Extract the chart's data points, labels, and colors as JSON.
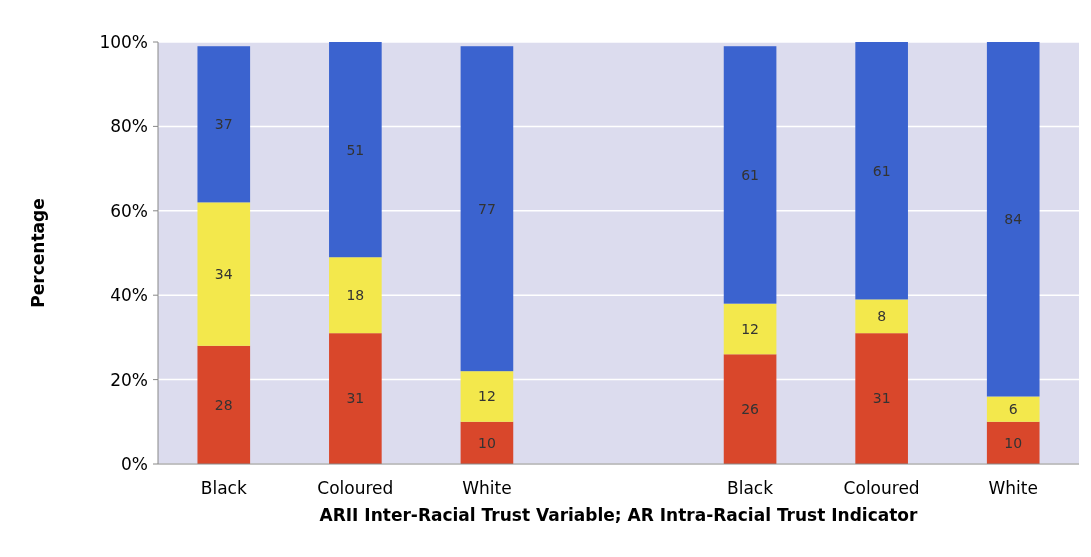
{
  "chart_data": {
    "type": "bar",
    "stacked": true,
    "xlabel": "ARII Inter-Racial Trust Variable; AR Intra-Racial Trust Indicator",
    "ylabel": "Percentage",
    "categories": [
      "Black",
      "Coloured",
      "White",
      null,
      "Black",
      "Coloured",
      "White"
    ],
    "series": [
      {
        "color": "#d9472b",
        "values": [
          28,
          31,
          10,
          null,
          26,
          31,
          10
        ]
      },
      {
        "color": "#f3e84c",
        "values": [
          34,
          18,
          12,
          null,
          12,
          8,
          6
        ]
      },
      {
        "color": "#3b63cf",
        "values": [
          37,
          51,
          77,
          null,
          61,
          61,
          84
        ]
      }
    ],
    "ylim": [
      0,
      100
    ],
    "yticks": [
      {
        "value": 0,
        "label": "0%"
      },
      {
        "value": 20,
        "label": "20%"
      },
      {
        "value": 40,
        "label": "40%"
      },
      {
        "value": 60,
        "label": "60%"
      },
      {
        "value": 80,
        "label": "80%"
      },
      {
        "value": 100,
        "label": "100%"
      }
    ],
    "grid": "y",
    "data_labels": true
  }
}
